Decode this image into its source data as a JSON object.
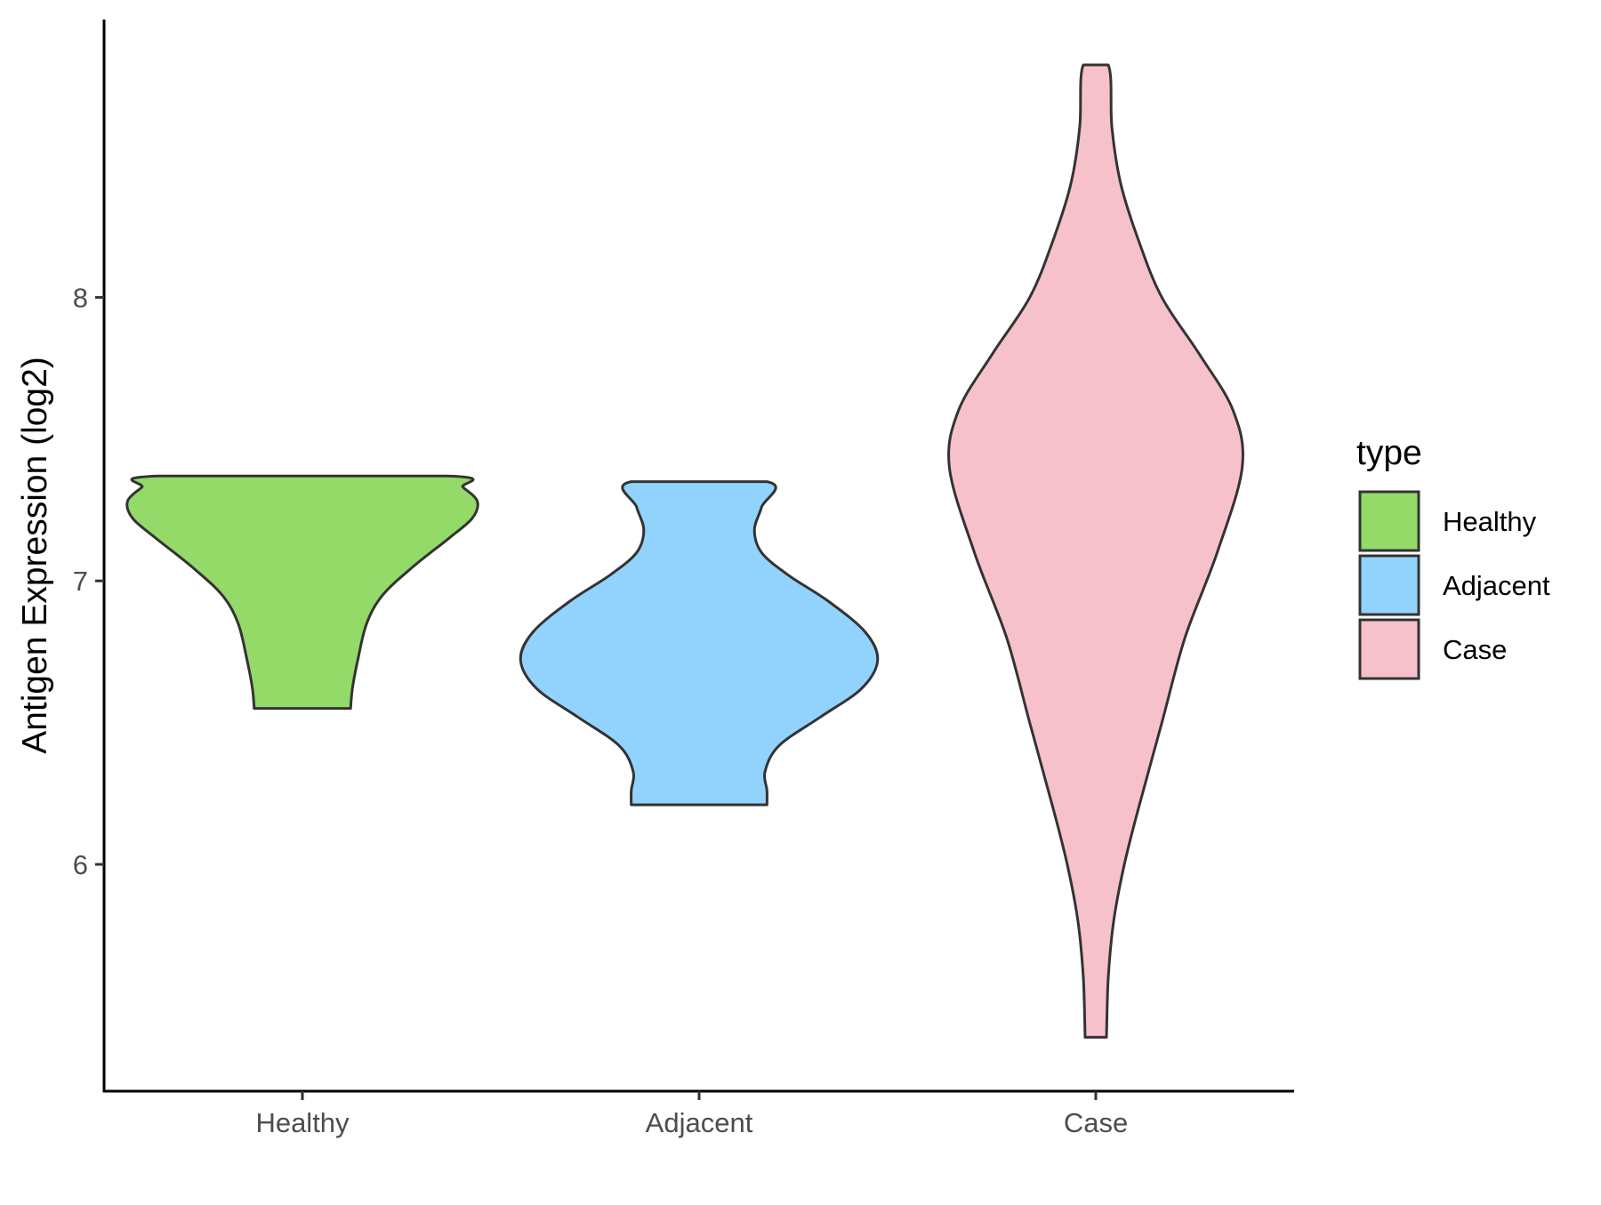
{
  "chart_data": {
    "type": "violin",
    "title": "",
    "xlabel": "",
    "ylabel": "Antigen Expression (log2)",
    "ylim": [
      5.2,
      8.98
    ],
    "yticks": [
      6,
      7,
      8
    ],
    "categories": [
      "Healthy",
      "Adjacent",
      "Case"
    ],
    "legend": {
      "title": "type",
      "placement": "right",
      "entries": [
        "Healthy",
        "Adjacent",
        "Case"
      ]
    },
    "colors": {
      "Healthy": "#93DA69",
      "Adjacent": "#92D3FE",
      "Case": "#F7C1CB",
      "outline": "#333333"
    },
    "series": [
      {
        "category": "Healthy",
        "min": 6.55,
        "max": 7.37,
        "profile": [
          [
            6.55,
            0.27
          ],
          [
            6.62,
            0.28
          ],
          [
            6.72,
            0.31
          ],
          [
            6.85,
            0.36
          ],
          [
            6.95,
            0.45
          ],
          [
            7.05,
            0.62
          ],
          [
            7.15,
            0.82
          ],
          [
            7.22,
            0.95
          ],
          [
            7.28,
            0.98
          ],
          [
            7.33,
            0.9
          ],
          [
            7.37,
            0.81
          ]
        ]
      },
      {
        "category": "Adjacent",
        "min": 6.21,
        "max": 7.35,
        "profile": [
          [
            6.21,
            0.38
          ],
          [
            6.26,
            0.38
          ],
          [
            6.33,
            0.37
          ],
          [
            6.42,
            0.45
          ],
          [
            6.52,
            0.68
          ],
          [
            6.62,
            0.91
          ],
          [
            6.72,
            1.0
          ],
          [
            6.82,
            0.93
          ],
          [
            6.93,
            0.72
          ],
          [
            7.02,
            0.5
          ],
          [
            7.1,
            0.35
          ],
          [
            7.18,
            0.31
          ],
          [
            7.26,
            0.35
          ],
          [
            7.35,
            0.38
          ]
        ]
      },
      {
        "category": "Case",
        "min": 5.39,
        "max": 8.82,
        "profile": [
          [
            5.39,
            0.06
          ],
          [
            5.6,
            0.07
          ],
          [
            5.8,
            0.1
          ],
          [
            6.0,
            0.16
          ],
          [
            6.2,
            0.24
          ],
          [
            6.5,
            0.37
          ],
          [
            6.8,
            0.5
          ],
          [
            7.1,
            0.68
          ],
          [
            7.4,
            0.82
          ],
          [
            7.6,
            0.77
          ],
          [
            7.8,
            0.58
          ],
          [
            8.0,
            0.37
          ],
          [
            8.2,
            0.24
          ],
          [
            8.4,
            0.14
          ],
          [
            8.6,
            0.09
          ],
          [
            8.82,
            0.07
          ]
        ]
      }
    ]
  }
}
